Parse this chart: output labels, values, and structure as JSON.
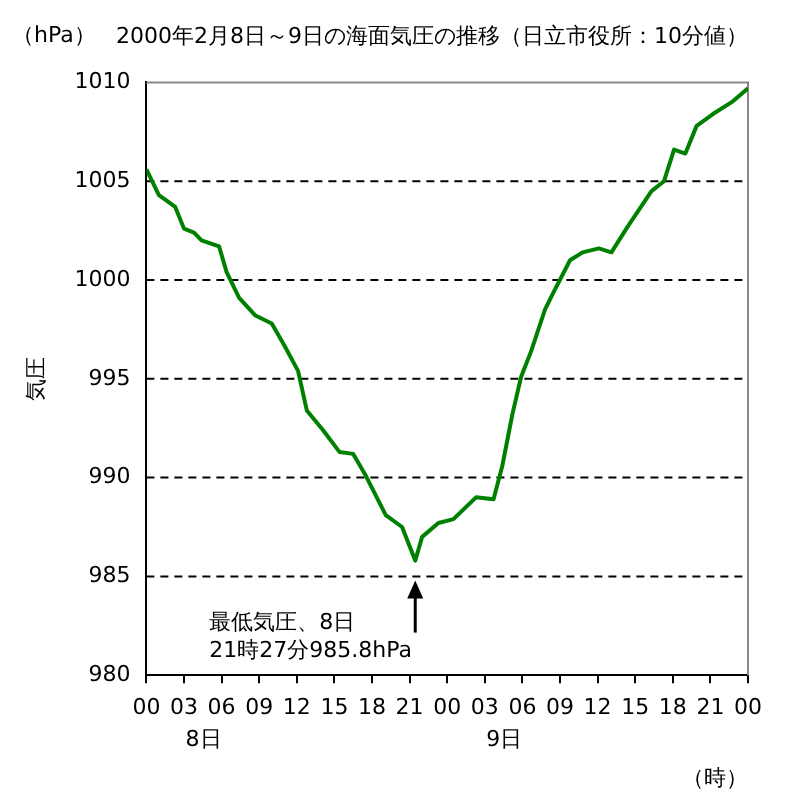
{
  "chart_data": {
    "type": "line",
    "title": "2000年2月8日～9日の海面気圧の推移（日立市役所：10分値）",
    "xlabel": "（時）",
    "ylabel": "気圧",
    "x": [
      0,
      1.0,
      2.3,
      3.0,
      3.8,
      4.4,
      5.8,
      6.4,
      7.4,
      8.7,
      10.0,
      11.0,
      12.1,
      12.8,
      14.1,
      15.4,
      16.5,
      17.5,
      19.1,
      20.4,
      21.45,
      22.0,
      23.3,
      24.5,
      26.3,
      27.7,
      28.4,
      29.2,
      29.9,
      30.7,
      31.8,
      32.5,
      33.8,
      34.8,
      36.1,
      37.1,
      38.4,
      40.3,
      41.3,
      42.1,
      43.0,
      43.9,
      45.2,
      46.7,
      48
    ],
    "series": [
      {
        "color": "#008000",
        "values": [
          1005.6,
          1004.3,
          1003.7,
          1002.6,
          1002.4,
          1002.0,
          1001.7,
          1000.4,
          999.1,
          998.2,
          997.8,
          996.7,
          995.4,
          993.4,
          992.4,
          991.3,
          991.2,
          990.1,
          988.1,
          987.5,
          985.8,
          987.0,
          987.7,
          987.9,
          989.0,
          988.9,
          990.6,
          993.2,
          995.1,
          996.4,
          998.5,
          999.4,
          1001.0,
          1001.4,
          1001.6,
          1001.4,
          1002.7,
          1004.5,
          1005.0,
          1006.6,
          1006.4,
          1007.8,
          1008.4,
          1009.0,
          1009.7
        ]
      }
    ],
    "xlim": [
      0,
      48
    ],
    "xticks": [
      {
        "value": 0,
        "label": "00"
      },
      {
        "value": 3,
        "label": "03"
      },
      {
        "value": 6,
        "label": "06"
      },
      {
        "value": 9,
        "label": "09"
      },
      {
        "value": 12,
        "label": "12"
      },
      {
        "value": 15,
        "label": "15"
      },
      {
        "value": 18,
        "label": "18"
      },
      {
        "value": 21,
        "label": "21"
      },
      {
        "value": 24,
        "label": "00"
      },
      {
        "value": 27,
        "label": "03"
      },
      {
        "value": 30,
        "label": "06"
      },
      {
        "value": 33,
        "label": "09"
      },
      {
        "value": 36,
        "label": "12"
      },
      {
        "value": 39,
        "label": "15"
      },
      {
        "value": 42,
        "label": "18"
      },
      {
        "value": 45,
        "label": "21"
      },
      {
        "value": 48,
        "label": "00"
      }
    ],
    "ylim": [
      980,
      1010
    ],
    "yticks": [
      980,
      985,
      990,
      995,
      1000,
      1005,
      1010
    ],
    "grid": "y",
    "marker": "none",
    "line_style": "solid",
    "legend": false,
    "annotations": [
      "（hPa）",
      {
        "text": "最低気圧、8日\n21時27分985.8hPa",
        "x": 21.45,
        "y": 985.8
      },
      "8日",
      "9日"
    ]
  }
}
